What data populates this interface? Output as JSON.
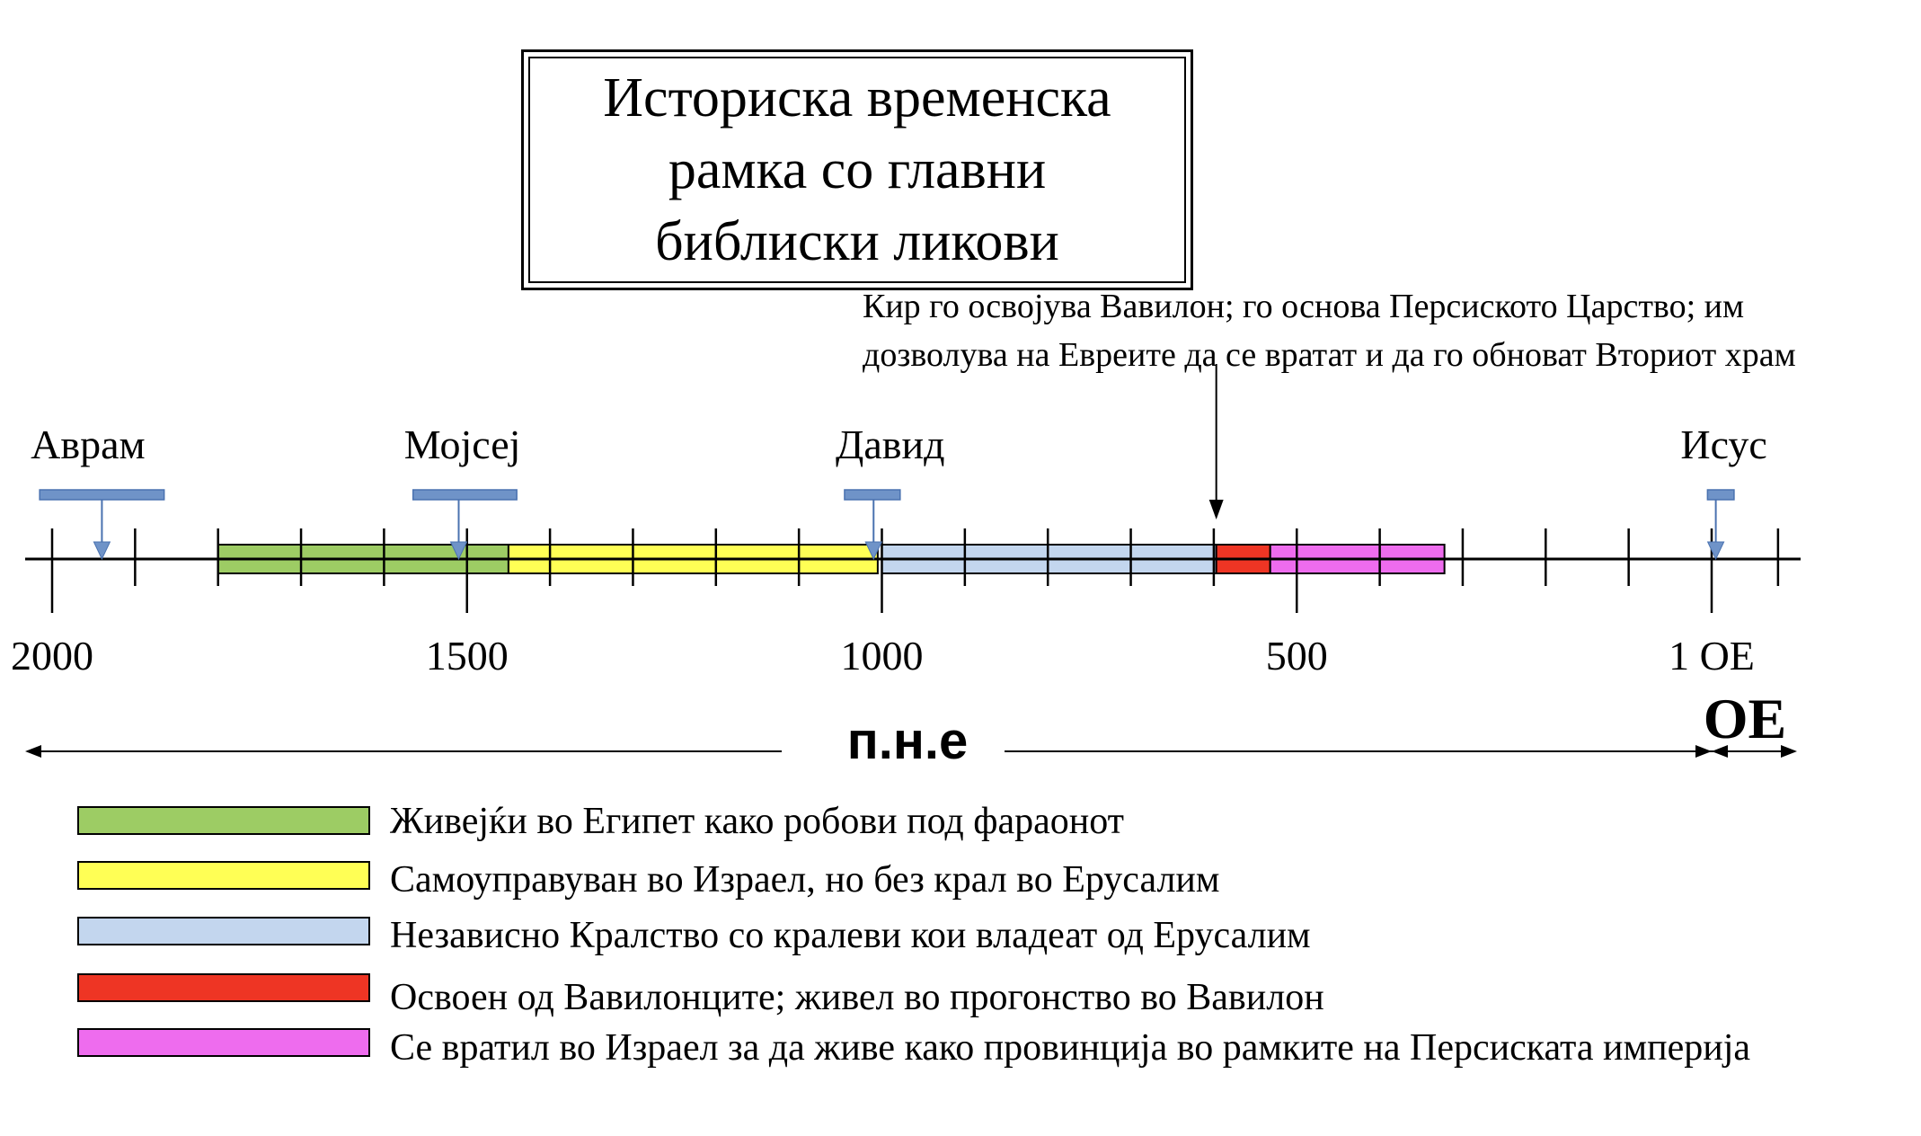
{
  "title": "Историска временска\nрамка со главни\nбиблиски ликови",
  "axis": {
    "tick_labels": [
      {
        "year": 2000,
        "label": "2000"
      },
      {
        "year": 1500,
        "label": "1500"
      },
      {
        "year": 1000,
        "label": "1000"
      },
      {
        "year": 500,
        "label": "500"
      },
      {
        "year": 0,
        "label": "1 ОЕ"
      }
    ],
    "tick_years": [
      2000,
      1900,
      1800,
      1700,
      1600,
      1500,
      1400,
      1300,
      1200,
      1100,
      1000,
      900,
      800,
      700,
      600,
      500,
      400,
      300,
      200,
      100,
      0,
      -80
    ],
    "major_years": [
      2000,
      1500,
      1000,
      500,
      0
    ]
  },
  "periods": [
    {
      "name": "egypt",
      "start": 1800,
      "end": 1450,
      "color": "#9DCC64"
    },
    {
      "name": "judges",
      "start": 1450,
      "end": 1005,
      "color": "#FFFF55"
    },
    {
      "name": "kingdom",
      "start": 1000,
      "end": 597,
      "color": "#C3D6EE"
    },
    {
      "name": "exile",
      "start": 597,
      "end": 532,
      "color": "#EE3524"
    },
    {
      "name": "persian",
      "start": 532,
      "end": 322,
      "color": "#EE6CEE"
    }
  ],
  "people": [
    {
      "name": "Аврам",
      "start": 2015,
      "end": 1865,
      "year": 1940
    },
    {
      "name": "Мојсеј",
      "start": 1565,
      "end": 1440,
      "year": 1510
    },
    {
      "name": "Давид",
      "start": 1045,
      "end": 978,
      "year": 1010
    },
    {
      "name": "Исус",
      "start": 5,
      "end": -27,
      "year": -5
    }
  ],
  "cyrus": {
    "year": 597,
    "text": "Кир го освојува Вавилон; го основа Персиското Царство; им дозволува на Евреите да се вратат и да го обноват Вториот храм"
  },
  "eras": {
    "bce": "п.н.е",
    "ce": "ОЕ"
  },
  "legend": [
    {
      "color": "#9DCC64",
      "label": "Живејќи во Египет како робови под фараонот"
    },
    {
      "color": "#FFFF55",
      "label": "Самоуправуван во Израел, но без крал во Ерусалим"
    },
    {
      "color": "#C3D6EE",
      "label": "Независно Кралство со кралеви кои владеат од Ерусалим"
    },
    {
      "color": "#EE3524",
      "label": "Освоен од Вавилонците; живел во прогонство во Вавилон"
    },
    {
      "color": "#EE6CEE",
      "label": "Се вратил во Израел за да живе како провинција во рамките на Персиската империја"
    }
  ],
  "colors": {
    "marker": "#6F93C8",
    "marker_border": "#4A72B0",
    "line": "#000000"
  }
}
